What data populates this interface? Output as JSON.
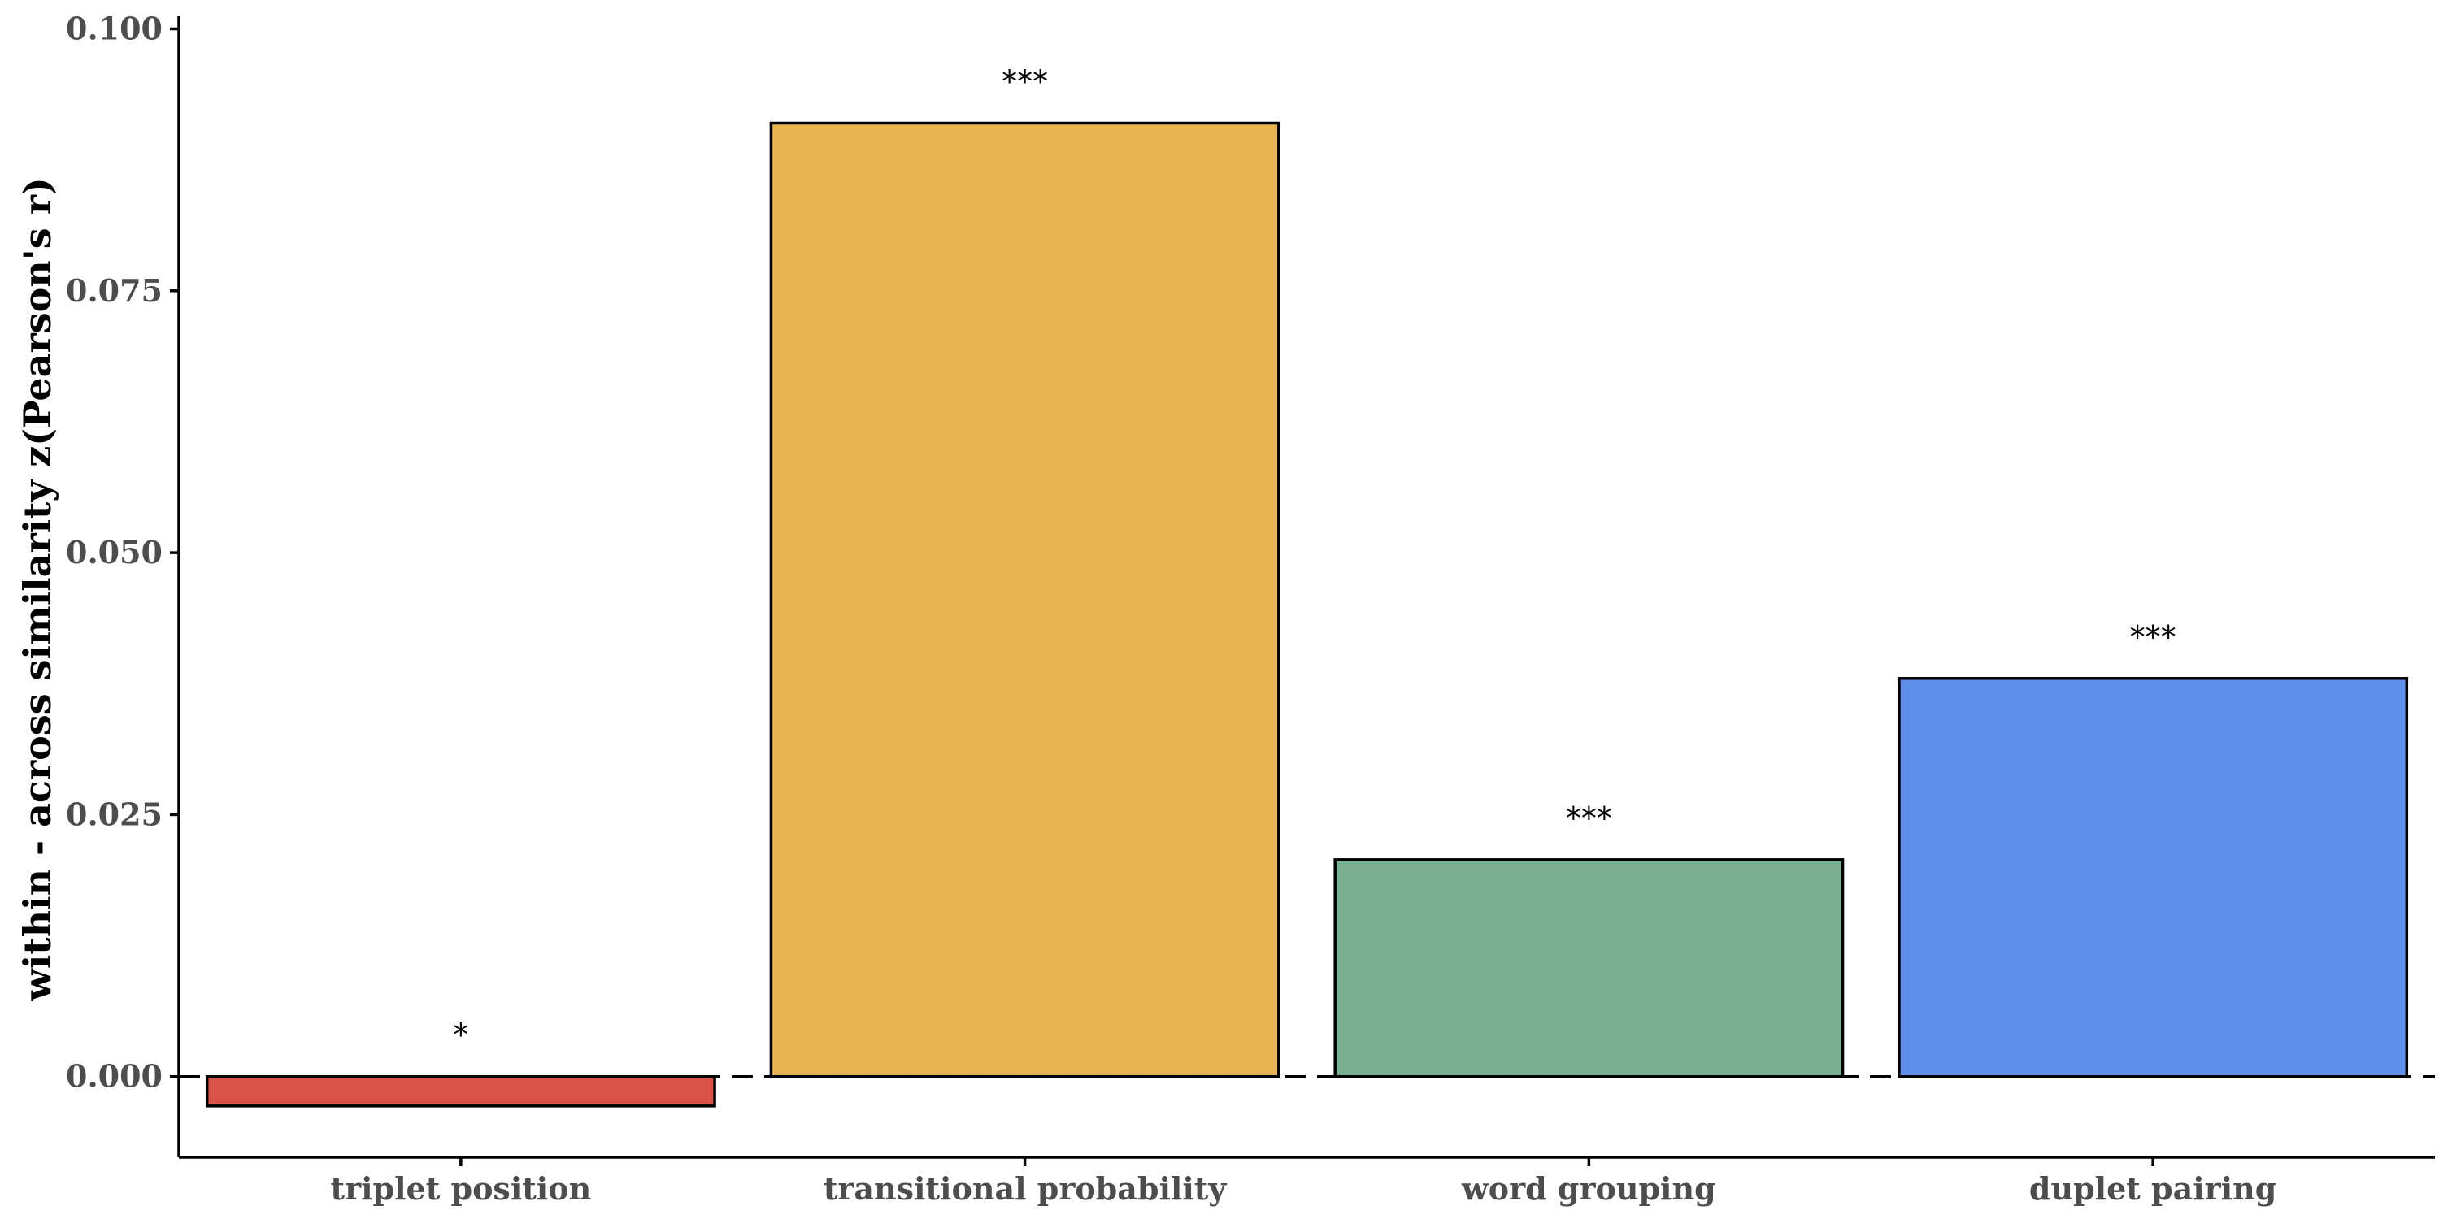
{
  "chart_data": {
    "type": "bar",
    "title": "",
    "xlabel": "",
    "ylabel": "within - across similarity z(Pearson's r)",
    "ylim": [
      -0.0077,
      0.1012
    ],
    "yticks": [
      0.0,
      0.025,
      0.05,
      0.075,
      0.1
    ],
    "ytick_labels": [
      "0.000",
      "0.025",
      "0.050",
      "0.075",
      "0.100"
    ],
    "categories": [
      "triplet position",
      "transitional probability",
      "word grouping",
      "duplet pairing"
    ],
    "values": [
      -0.0028,
      0.091,
      0.0207,
      0.038
    ],
    "significance": [
      "*",
      "***",
      "***",
      "***"
    ],
    "colors": [
      "#d9534a",
      "#e6b551",
      "#7bb095",
      "#5f8fea"
    ],
    "reference_line": 0.0,
    "grid": false,
    "legend": "none"
  }
}
